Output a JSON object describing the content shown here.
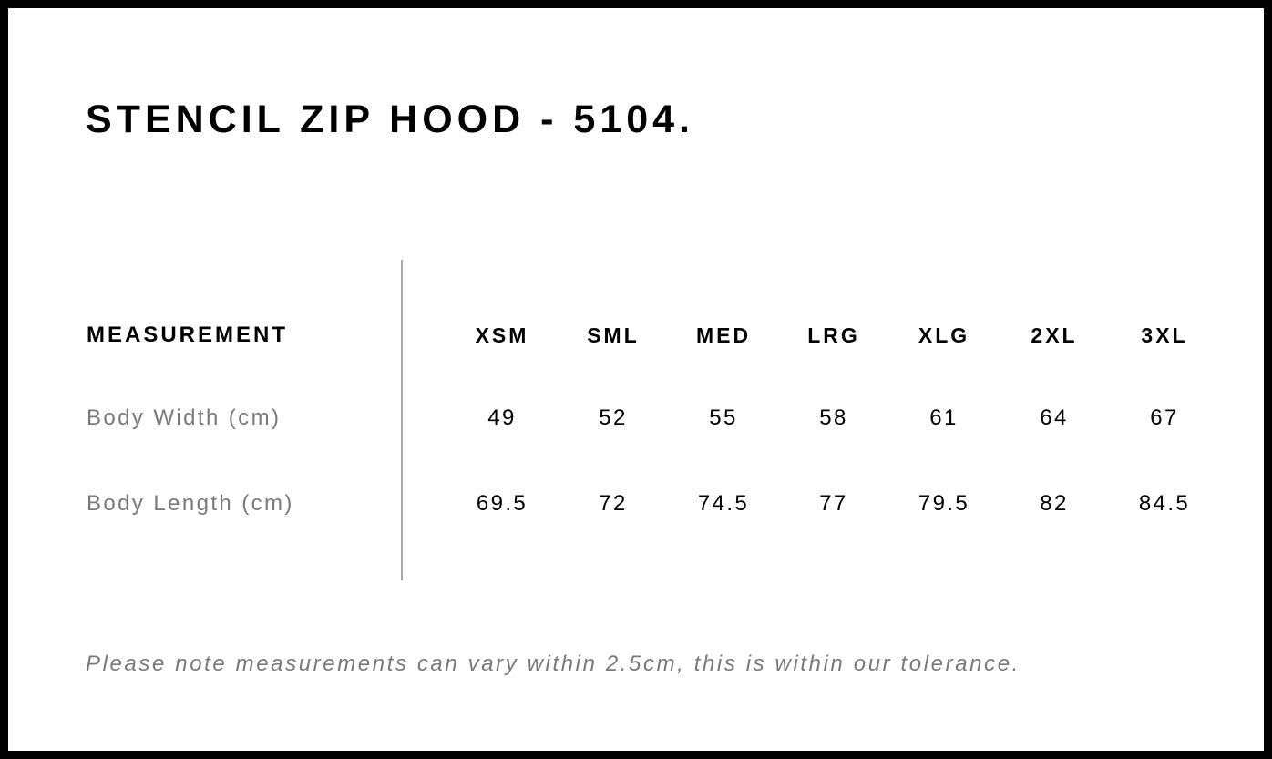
{
  "title": "STENCIL ZIP HOOD - 5104.",
  "table": {
    "header_label": "MEASUREMENT",
    "sizes": [
      "XSM",
      "SML",
      "MED",
      "LRG",
      "XLG",
      "2XL",
      "3XL"
    ],
    "rows": [
      {
        "label": "Body Width (cm)",
        "values": [
          "49",
          "52",
          "55",
          "58",
          "61",
          "64",
          "67"
        ]
      },
      {
        "label": "Body Length (cm)",
        "values": [
          "69.5",
          "72",
          "74.5",
          "77",
          "79.5",
          "82",
          "84.5"
        ]
      }
    ]
  },
  "note": "Please note measurements can vary within 2.5cm, this is within our tolerance.",
  "colors": {
    "frame": "#000000",
    "label_gray": "#7a7a7a",
    "divider": "#a8a8a8"
  }
}
